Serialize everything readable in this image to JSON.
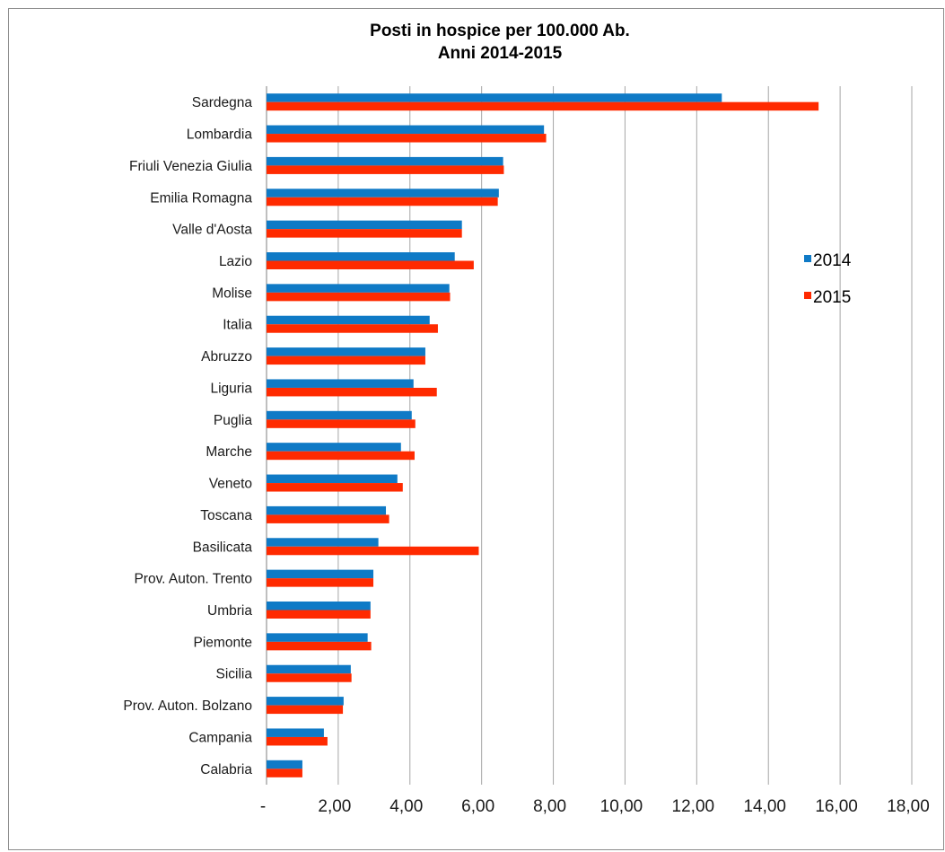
{
  "chart_data": {
    "type": "bar",
    "orientation": "horizontal",
    "title": [
      "Posti in hospice per 100.000 Ab.",
      "Anni 2014-2015"
    ],
    "categories": [
      "Sardegna",
      "Lombardia",
      "Friuli Venezia Giulia",
      "Emilia Romagna",
      "Valle d'Aosta",
      "Lazio",
      "Molise",
      "Italia",
      "Abruzzo",
      "Liguria",
      "Puglia",
      "Marche",
      "Veneto",
      "Toscana",
      "Basilicata",
      "Prov. Auton. Trento",
      "Umbria",
      "Piemonte",
      "Sicilia",
      "Prov. Auton. Bolzano",
      "Campania",
      "Calabria"
    ],
    "series": [
      {
        "name": "2014",
        "color": "#0f7ac6",
        "values": [
          12.7,
          7.74,
          6.6,
          6.48,
          5.45,
          5.25,
          5.1,
          4.55,
          4.43,
          4.1,
          4.05,
          3.75,
          3.65,
          3.33,
          3.12,
          2.98,
          2.9,
          2.82,
          2.35,
          2.15,
          1.6,
          1.0
        ]
      },
      {
        "name": "2015",
        "color": "#ff2a00",
        "values": [
          15.4,
          7.8,
          6.62,
          6.45,
          5.45,
          5.78,
          5.12,
          4.78,
          4.43,
          4.75,
          4.15,
          4.13,
          3.8,
          3.42,
          5.92,
          2.98,
          2.9,
          2.92,
          2.37,
          2.13,
          1.7,
          1.0
        ]
      }
    ],
    "x_ticks": [
      "-",
      "2,00",
      "4,00",
      "6,00",
      "8,00",
      "10,00",
      "12,00",
      "14,00",
      "16,00",
      "18,00"
    ],
    "xlim": [
      0,
      18
    ],
    "grid": "vertical",
    "legend_position": "right"
  }
}
